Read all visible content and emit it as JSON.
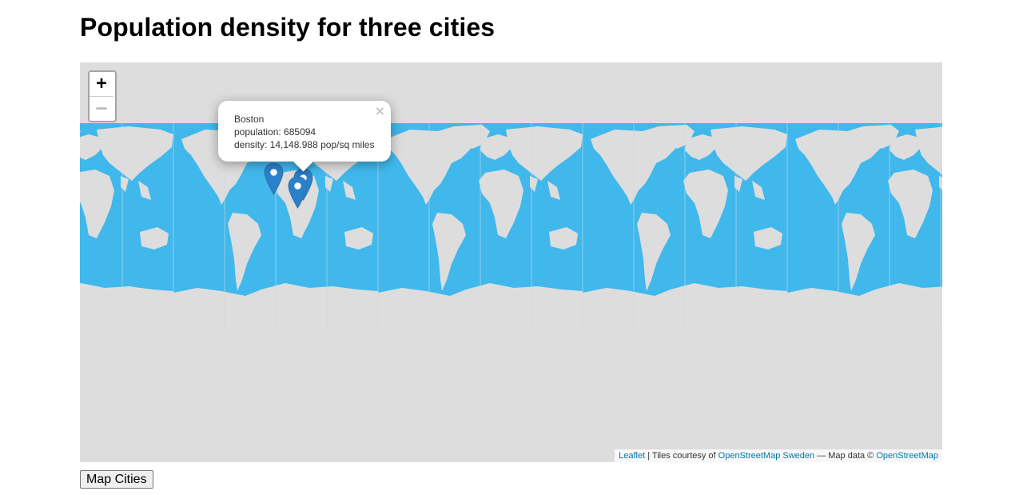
{
  "page": {
    "title": "Population density for three cities"
  },
  "map": {
    "zoom_in_label": "+",
    "zoom_out_label": "–",
    "ocean_color": "#40b8ec",
    "land_color": "#dddddd",
    "marker_color": "#2a81cb",
    "markers": [
      {
        "icon": "map-pin-icon"
      },
      {
        "icon": "map-pin-icon"
      },
      {
        "icon": "map-pin-icon"
      }
    ],
    "popup": {
      "city": "Boston",
      "population": "population: 685094",
      "density": "density: 14,148.988 pop/sq miles",
      "close_label": "×"
    },
    "attribution": {
      "leaflet": "Leaflet",
      "sep": " | Tiles courtesy of ",
      "tiles": "OpenStreetMap Sweden",
      "mid": " — Map data © ",
      "data": "OpenStreetMap"
    }
  },
  "button": {
    "label": "Map Cities"
  }
}
